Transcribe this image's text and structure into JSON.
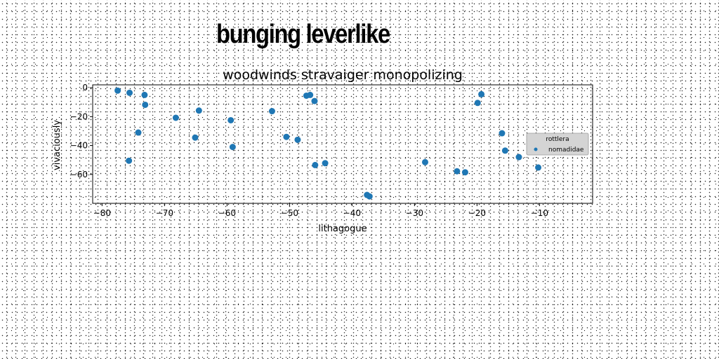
{
  "page": {
    "title": "bunging leverlike"
  },
  "colors": {
    "point": "#1f77b4",
    "legend_bg": "#d4d4d4"
  },
  "chart_data": {
    "type": "scatter",
    "title": "woodwinds stravaiger monopolizing",
    "xlabel": "lithagogue",
    "ylabel": "vivaciously",
    "xlim": [
      -81.5,
      -1.5
    ],
    "ylim": [
      -80,
      2
    ],
    "xticks": [
      -80,
      -70,
      -60,
      -50,
      -40,
      -30,
      -20,
      -10
    ],
    "yticks": [
      0,
      -20,
      -40,
      -60
    ],
    "grid": false,
    "legend": {
      "title": "rottlera",
      "placement": "right"
    },
    "series": [
      {
        "name": "nomadidae",
        "x": [
          -77.5,
          -75.6,
          -73.2,
          -73.1,
          -75.7,
          -74.2,
          -68.2,
          -65.1,
          -64.5,
          -59.4,
          -59.1,
          -52.8,
          -50.5,
          -48.7,
          -47.3,
          -46.7,
          -46.0,
          -45.9,
          -44.3,
          -37.6,
          -37.2,
          -28.3,
          -23.2,
          -21.9,
          -19.9,
          -19.3,
          -16.0,
          -15.5,
          -13.3,
          -10.2,
          -6.2
        ],
        "y": [
          -2.0,
          -3.5,
          -5.0,
          -11.8,
          -50.5,
          -31.0,
          -20.8,
          -34.5,
          -15.8,
          -22.5,
          -41.0,
          -16.2,
          -34.0,
          -36.0,
          -5.5,
          -5.0,
          -9.2,
          -53.5,
          -52.2,
          -74.2,
          -75.2,
          -51.5,
          -57.8,
          -58.5,
          -10.5,
          -4.5,
          -31.5,
          -43.5,
          -48.0,
          -55.2,
          -37.8
        ]
      }
    ]
  }
}
